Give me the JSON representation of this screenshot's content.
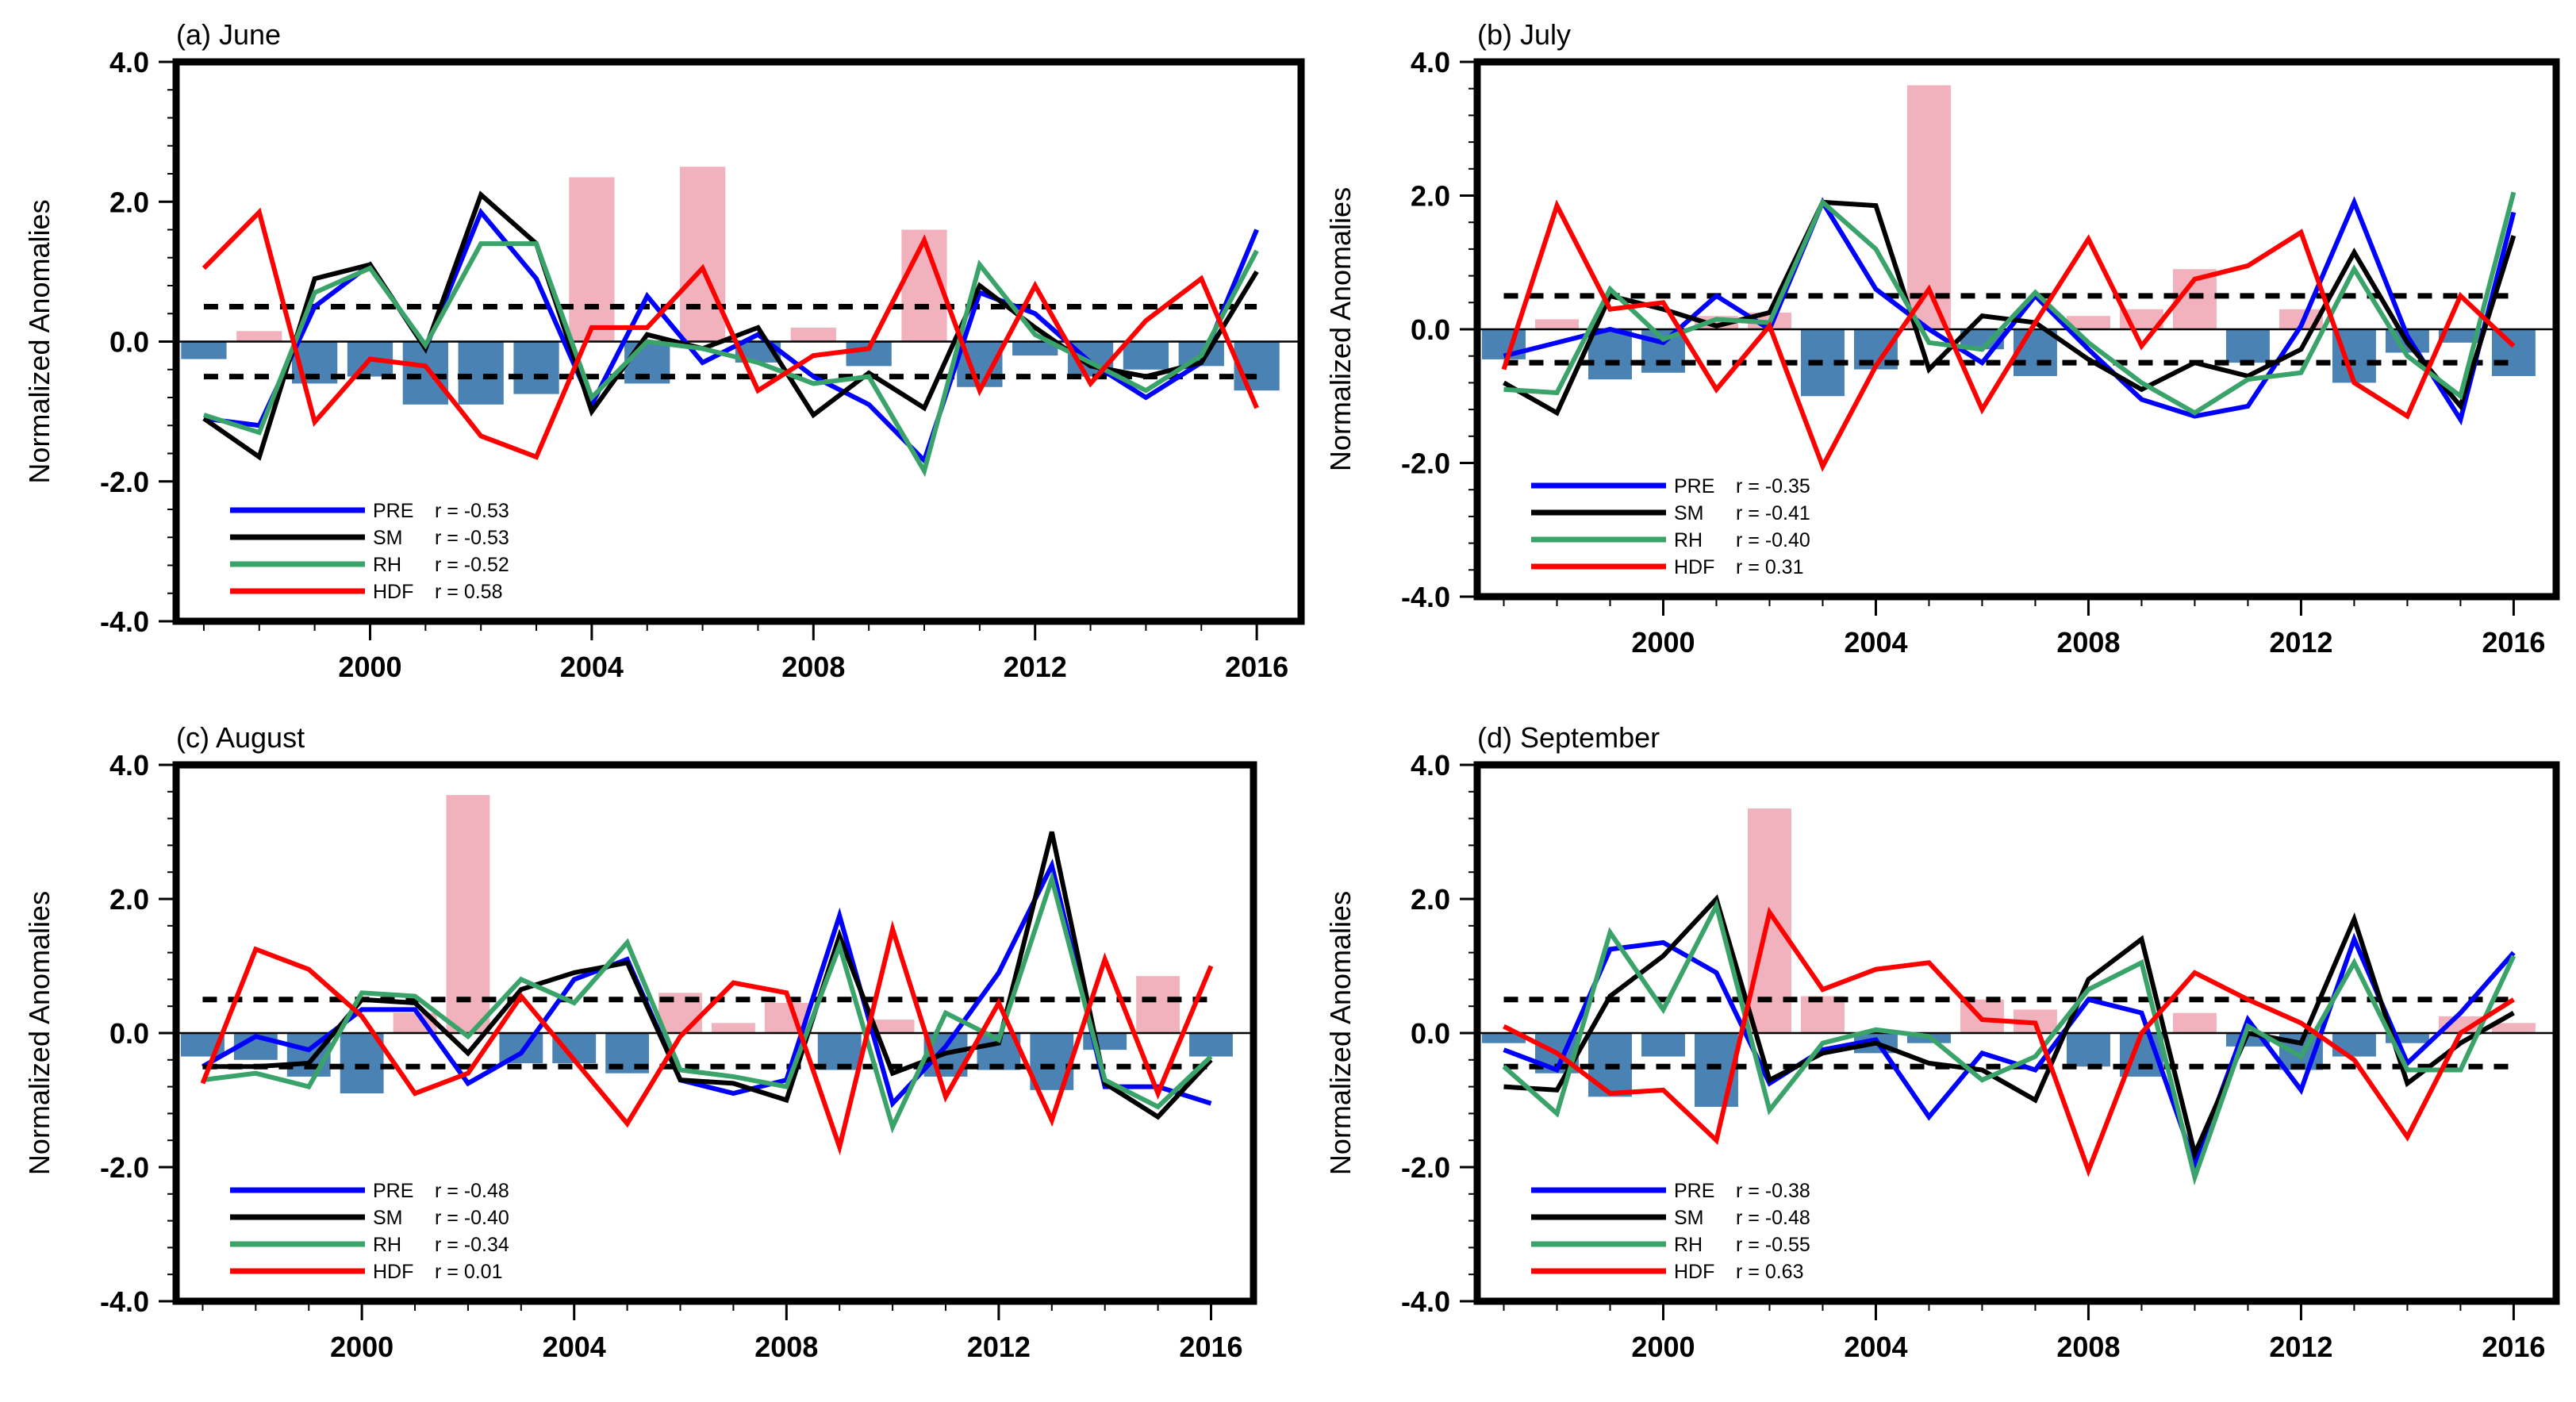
{
  "figure": {
    "ylabel": "Normalized Anomalies",
    "yticks": [
      "4.0",
      "2.0",
      "0.0",
      "-2.0",
      "-4.0"
    ],
    "xticks": [
      "2000",
      "2004",
      "2008",
      "2012",
      "2016"
    ],
    "legend_names": [
      "PRE",
      "SM",
      "RH",
      "HDF"
    ]
  },
  "colors": {
    "PRE": "#0000ff",
    "SM": "#000000",
    "RH": "#3aa36a",
    "HDF": "#ff0000",
    "bar_pos": "#f2b2bd",
    "bar_neg": "#4a82b4",
    "threshold": "#000000"
  },
  "chart_data": [
    {
      "type": "bar+line",
      "title": "(a) June",
      "ylabel": "Normalized Anomalies",
      "ylim": [
        -4,
        4
      ],
      "xlim": [
        1996.5,
        2016.8
      ],
      "thresholds": [
        0.5,
        -0.5
      ],
      "years": [
        1997,
        1998,
        1999,
        2000,
        2001,
        2002,
        2003,
        2004,
        2005,
        2006,
        2007,
        2008,
        2009,
        2010,
        2011,
        2012,
        2013,
        2014,
        2015,
        2016
      ],
      "bars": [
        -0.25,
        0.15,
        -0.6,
        -0.5,
        -0.9,
        -0.9,
        -0.75,
        2.35,
        -0.6,
        2.5,
        -0.3,
        0.2,
        -0.35,
        1.6,
        -0.65,
        -0.2,
        -0.5,
        -0.4,
        -0.35,
        -0.7
      ],
      "legend": [
        "r = -0.53",
        "r = -0.53",
        "r = -0.52",
        "r = 0.58"
      ],
      "series": [
        {
          "name": "PRE",
          "values": [
            -1.1,
            -1.2,
            0.5,
            1.1,
            -0.1,
            1.85,
            0.9,
            -0.9,
            0.65,
            -0.3,
            0.1,
            -0.5,
            -0.9,
            -1.7,
            0.7,
            0.4,
            -0.3,
            -0.8,
            -0.3,
            1.6
          ]
        },
        {
          "name": "SM",
          "values": [
            -1.1,
            -1.65,
            0.9,
            1.1,
            -0.1,
            2.1,
            1.4,
            -1.0,
            0.1,
            -0.1,
            0.2,
            -1.05,
            -0.45,
            -0.95,
            0.8,
            0.2,
            -0.35,
            -0.5,
            -0.3,
            1.0
          ]
        },
        {
          "name": "RH",
          "values": [
            -1.05,
            -1.3,
            0.7,
            1.05,
            -0.05,
            1.4,
            1.4,
            -0.8,
            0.0,
            -0.1,
            -0.3,
            -0.6,
            -0.5,
            -1.85,
            1.1,
            0.1,
            -0.3,
            -0.7,
            -0.2,
            1.3
          ]
        },
        {
          "name": "HDF",
          "values": [
            1.05,
            1.85,
            -1.15,
            -0.25,
            -0.35,
            -1.35,
            -1.65,
            0.2,
            0.2,
            1.05,
            -0.7,
            -0.2,
            -0.1,
            1.45,
            -0.7,
            0.8,
            -0.6,
            0.3,
            0.9,
            -0.95
          ]
        }
      ]
    },
    {
      "type": "bar+line",
      "title": "(b) July",
      "ylabel": "Normalized Anomalies",
      "ylim": [
        -4,
        4
      ],
      "xlim": [
        1996.5,
        2016.8
      ],
      "thresholds": [
        0.5,
        -0.5
      ],
      "years": [
        1997,
        1998,
        1999,
        2000,
        2001,
        2002,
        2003,
        2004,
        2005,
        2006,
        2007,
        2008,
        2009,
        2010,
        2011,
        2012,
        2013,
        2014,
        2015,
        2016
      ],
      "bars": [
        -0.45,
        0.15,
        -0.75,
        -0.65,
        0.2,
        0.25,
        -1.0,
        -0.6,
        3.65,
        -0.3,
        -0.7,
        0.2,
        0.3,
        0.9,
        -0.5,
        0.3,
        -0.8,
        -0.35,
        -0.2,
        -0.7
      ],
      "legend": [
        "r = -0.35",
        "r = -0.41",
        "r = -0.40",
        "r = 0.31"
      ],
      "series": [
        {
          "name": "PRE",
          "values": [
            -0.4,
            -0.2,
            0.0,
            -0.2,
            0.5,
            0.0,
            1.9,
            0.6,
            0.0,
            -0.5,
            0.5,
            -0.3,
            -1.05,
            -1.3,
            -1.15,
            0.05,
            1.9,
            -0.1,
            -1.35,
            1.75
          ]
        },
        {
          "name": "SM",
          "values": [
            -0.8,
            -1.25,
            0.5,
            0.3,
            0.05,
            0.25,
            1.9,
            1.85,
            -0.6,
            0.2,
            0.1,
            -0.45,
            -0.9,
            -0.5,
            -0.7,
            -0.3,
            1.15,
            -0.2,
            -1.15,
            1.4
          ]
        },
        {
          "name": "RH",
          "values": [
            -0.9,
            -0.95,
            0.6,
            -0.15,
            0.15,
            0.1,
            1.9,
            1.2,
            -0.2,
            -0.3,
            0.55,
            -0.2,
            -0.8,
            -1.25,
            -0.75,
            -0.65,
            0.9,
            -0.4,
            -1.0,
            2.05
          ]
        },
        {
          "name": "HDF",
          "values": [
            -0.6,
            1.85,
            0.3,
            0.4,
            -0.9,
            0.05,
            -2.05,
            -0.55,
            0.6,
            -1.2,
            0.1,
            1.35,
            -0.25,
            0.75,
            0.95,
            1.45,
            -0.8,
            -1.3,
            0.5,
            -0.25
          ]
        }
      ]
    },
    {
      "type": "bar+line",
      "title": "(c) August",
      "ylabel": "Normalized Anomalies",
      "ylim": [
        -4,
        4
      ],
      "xlim": [
        1996.5,
        2016.8
      ],
      "thresholds": [
        0.5,
        -0.5
      ],
      "years": [
        1997,
        1998,
        1999,
        2000,
        2001,
        2002,
        2003,
        2004,
        2005,
        2006,
        2007,
        2008,
        2009,
        2010,
        2011,
        2012,
        2013,
        2014,
        2015,
        2016
      ],
      "bars": [
        -0.35,
        -0.4,
        -0.65,
        -0.9,
        0.3,
        3.55,
        -0.45,
        -0.45,
        -0.6,
        0.6,
        0.15,
        0.45,
        -0.55,
        0.2,
        -0.65,
        -0.55,
        -0.85,
        -0.25,
        0.85,
        -0.35
      ],
      "legend": [
        "r = -0.48",
        "r = -0.40",
        "r = -0.34",
        "r = 0.01"
      ],
      "series": [
        {
          "name": "PRE",
          "values": [
            -0.5,
            -0.05,
            -0.25,
            0.35,
            0.35,
            -0.75,
            -0.3,
            0.8,
            1.1,
            -0.7,
            -0.9,
            -0.7,
            1.75,
            -1.05,
            -0.2,
            0.9,
            2.5,
            -0.8,
            -0.8,
            -1.05
          ]
        },
        {
          "name": "SM",
          "values": [
            -0.5,
            -0.5,
            -0.45,
            0.5,
            0.45,
            -0.3,
            0.65,
            0.9,
            1.05,
            -0.7,
            -0.75,
            -1.0,
            1.45,
            -0.6,
            -0.3,
            -0.15,
            3.0,
            -0.75,
            -1.25,
            -0.4
          ]
        },
        {
          "name": "RH",
          "values": [
            -0.7,
            -0.6,
            -0.8,
            0.6,
            0.55,
            -0.05,
            0.8,
            0.45,
            1.35,
            -0.55,
            -0.65,
            -0.8,
            1.3,
            -1.4,
            0.3,
            -0.1,
            2.3,
            -0.7,
            -1.1,
            -0.35
          ]
        },
        {
          "name": "HDF",
          "values": [
            -0.75,
            1.25,
            0.95,
            0.25,
            -0.9,
            -0.6,
            0.55,
            -0.4,
            -1.35,
            -0.05,
            0.75,
            0.6,
            -1.7,
            1.55,
            -0.95,
            0.45,
            -1.3,
            1.1,
            -0.9,
            1.0
          ]
        }
      ]
    },
    {
      "type": "bar+line",
      "title": "(d) September",
      "ylabel": "Normalized Anomalies",
      "ylim": [
        -4,
        4
      ],
      "xlim": [
        1996.5,
        2016.8
      ],
      "thresholds": [
        0.5,
        -0.5
      ],
      "years": [
        1997,
        1998,
        1999,
        2000,
        2001,
        2002,
        2003,
        2004,
        2005,
        2006,
        2007,
        2008,
        2009,
        2010,
        2011,
        2012,
        2013,
        2014,
        2015,
        2016
      ],
      "bars": [
        -0.15,
        -0.6,
        -0.95,
        -0.35,
        -1.1,
        3.35,
        0.55,
        -0.3,
        -0.15,
        0.5,
        0.35,
        -0.5,
        -0.65,
        0.3,
        -0.2,
        -0.55,
        -0.35,
        -0.15,
        0.25,
        0.15
      ],
      "legend": [
        "r = -0.38",
        "r = -0.48",
        "r = -0.55",
        "r = 0.63"
      ],
      "series": [
        {
          "name": "PRE",
          "values": [
            -0.25,
            -0.55,
            1.25,
            1.35,
            0.9,
            -0.75,
            -0.25,
            -0.1,
            -1.25,
            -0.3,
            -0.55,
            0.5,
            0.3,
            -1.95,
            0.2,
            -0.85,
            1.4,
            -0.45,
            0.3,
            1.2
          ]
        },
        {
          "name": "SM",
          "values": [
            -0.8,
            -0.85,
            0.55,
            1.15,
            2.0,
            -0.7,
            -0.3,
            -0.15,
            -0.45,
            -0.55,
            -1.0,
            0.8,
            1.4,
            -1.8,
            0.0,
            -0.15,
            1.7,
            -0.75,
            -0.15,
            0.3
          ]
        },
        {
          "name": "RH",
          "values": [
            -0.5,
            -1.2,
            1.5,
            0.35,
            1.9,
            -1.15,
            -0.15,
            0.05,
            -0.05,
            -0.7,
            -0.35,
            0.65,
            1.05,
            -2.15,
            0.1,
            -0.35,
            1.05,
            -0.55,
            -0.55,
            1.15
          ]
        },
        {
          "name": "HDF",
          "values": [
            0.1,
            -0.3,
            -0.9,
            -0.85,
            -1.6,
            1.8,
            0.65,
            0.95,
            1.05,
            0.2,
            0.15,
            -2.05,
            0.0,
            0.9,
            0.5,
            0.15,
            -0.4,
            -1.55,
            0.0,
            0.5
          ]
        }
      ]
    }
  ]
}
